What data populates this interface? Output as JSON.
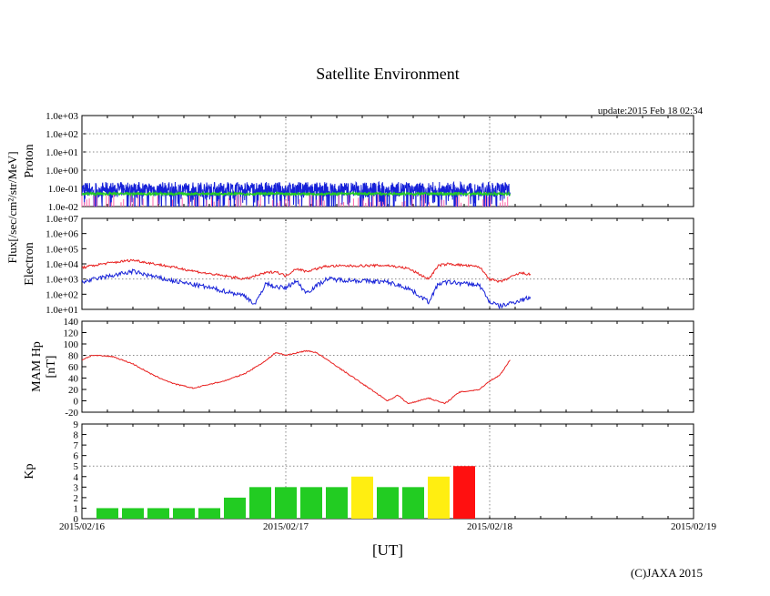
{
  "title": "Satellite Environment",
  "update": "update:2015 Feb 18 02:34",
  "copyright": "(C)JAXA 2015",
  "xlabel": "[UT]",
  "x_ticks": [
    "2015/02/16",
    "2015/02/17",
    "2015/02/18",
    "2015/02/19"
  ],
  "flux_label": "Flux[/sec/cm²/str/MeV]",
  "colors": {
    "red": "#e8201f",
    "blue": "#1520d8",
    "green": "#22cc22",
    "yellow": "#ffee11",
    "bar_red": "#ff1010",
    "pink": "#ff66aa"
  },
  "chart_data": [
    {
      "type": "line",
      "name": "proton",
      "ylabel": "Proton",
      "yscale": "log",
      "ylim_exp": [
        -2,
        3
      ],
      "y_ticks": [
        "1.0e-02",
        "1.0e-01",
        "1.0e+00",
        "1.0e+01",
        "1.0e+02",
        "1.0e+03"
      ],
      "xlim": [
        0,
        3
      ],
      "series": [
        {
          "name": "proton-high",
          "color": "blue",
          "noise": 0.4,
          "x": [
            0,
            0.5,
            1.0,
            1.5,
            2.1
          ],
          "log_y": [
            -1.05,
            -1.05,
            -1.05,
            -1.05,
            -1.05
          ]
        },
        {
          "name": "proton-mid",
          "color": "green",
          "noise": 0.08,
          "x": [
            0,
            0.5,
            1.0,
            1.5,
            2.1
          ],
          "log_y": [
            -1.3,
            -1.3,
            -1.3,
            -1.3,
            -1.3
          ]
        }
      ]
    },
    {
      "type": "line",
      "name": "electron",
      "ylabel": "Electron",
      "yscale": "log",
      "ylim_exp": [
        1,
        7
      ],
      "y_ticks": [
        "1.0e+01",
        "1.0e+02",
        "1.0e+03",
        "1.0e+04",
        "1.0e+05",
        "1.0e+06",
        "1.0e+07"
      ],
      "xlim": [
        0,
        3
      ],
      "series": [
        {
          "name": "electron-high",
          "color": "red",
          "noise": 0.08,
          "x": [
            0,
            0.1,
            0.25,
            0.4,
            0.6,
            0.8,
            0.85,
            0.9,
            0.95,
            1.0,
            1.05,
            1.1,
            1.2,
            1.5,
            1.6,
            1.7,
            1.75,
            1.8,
            1.95,
            2.0,
            2.05,
            2.15,
            2.2
          ],
          "log_y": [
            3.75,
            4.0,
            4.25,
            3.9,
            3.4,
            3.0,
            3.2,
            3.4,
            3.5,
            3.2,
            3.7,
            3.5,
            3.85,
            3.9,
            3.7,
            3.0,
            3.9,
            4.0,
            3.8,
            3.0,
            2.8,
            3.4,
            3.3
          ]
        },
        {
          "name": "electron-low",
          "color": "blue",
          "noise": 0.15,
          "x": [
            0,
            0.1,
            0.25,
            0.4,
            0.6,
            0.8,
            0.85,
            0.9,
            0.95,
            1.0,
            1.05,
            1.1,
            1.2,
            1.5,
            1.6,
            1.7,
            1.75,
            1.8,
            1.95,
            2.0,
            2.05,
            2.15,
            2.2
          ],
          "log_y": [
            2.8,
            3.1,
            3.5,
            3.0,
            2.5,
            1.9,
            1.3,
            2.7,
            2.5,
            2.4,
            2.9,
            2.1,
            3.0,
            2.8,
            2.4,
            1.5,
            2.7,
            2.8,
            2.6,
            1.5,
            1.2,
            1.6,
            1.8
          ]
        }
      ]
    },
    {
      "type": "line",
      "name": "mam-hp",
      "ylabel": "MAM Hp",
      "ylabel2": "[nT]",
      "ylim": [
        -20,
        140
      ],
      "y_ticks": [
        "-20",
        "0",
        "20",
        "40",
        "60",
        "80",
        "100",
        "120",
        "140"
      ],
      "xlim": [
        0,
        3
      ],
      "series": [
        {
          "name": "hp",
          "color": "red",
          "x": [
            0,
            0.05,
            0.15,
            0.25,
            0.35,
            0.45,
            0.55,
            0.6,
            0.7,
            0.8,
            0.9,
            0.95,
            1.0,
            1.1,
            1.15,
            1.5,
            1.55,
            1.6,
            1.7,
            1.78,
            1.85,
            1.95,
            2.0,
            2.05,
            2.1
          ],
          "y": [
            72,
            80,
            78,
            65,
            45,
            30,
            22,
            27,
            35,
            48,
            70,
            85,
            80,
            88,
            85,
            0,
            10,
            -5,
            5,
            -5,
            15,
            20,
            35,
            45,
            72
          ]
        }
      ]
    },
    {
      "type": "bar",
      "name": "kp",
      "ylabel": "Kp",
      "ylim": [
        0,
        9
      ],
      "y_ticks": [
        "0",
        "1",
        "2",
        "3",
        "4",
        "5",
        "6",
        "7",
        "8",
        "9"
      ],
      "xlim": [
        0,
        3
      ],
      "bar_width": 0.125,
      "bars": [
        {
          "x": 0.125,
          "value": 1,
          "color": "green"
        },
        {
          "x": 0.25,
          "value": 1,
          "color": "green"
        },
        {
          "x": 0.375,
          "value": 1,
          "color": "green"
        },
        {
          "x": 0.5,
          "value": 1,
          "color": "green"
        },
        {
          "x": 0.625,
          "value": 1,
          "color": "green"
        },
        {
          "x": 0.75,
          "value": 2,
          "color": "green"
        },
        {
          "x": 0.875,
          "value": 3,
          "color": "green"
        },
        {
          "x": 1.0,
          "value": 3,
          "color": "green"
        },
        {
          "x": 1.125,
          "value": 3,
          "color": "green"
        },
        {
          "x": 1.25,
          "value": 3,
          "color": "green"
        },
        {
          "x": 1.375,
          "value": 4,
          "color": "yellow"
        },
        {
          "x": 1.5,
          "value": 3,
          "color": "green"
        },
        {
          "x": 1.625,
          "value": 3,
          "color": "green"
        },
        {
          "x": 1.75,
          "value": 4,
          "color": "yellow"
        },
        {
          "x": 1.875,
          "value": 5,
          "color": "bar_red"
        }
      ]
    }
  ]
}
